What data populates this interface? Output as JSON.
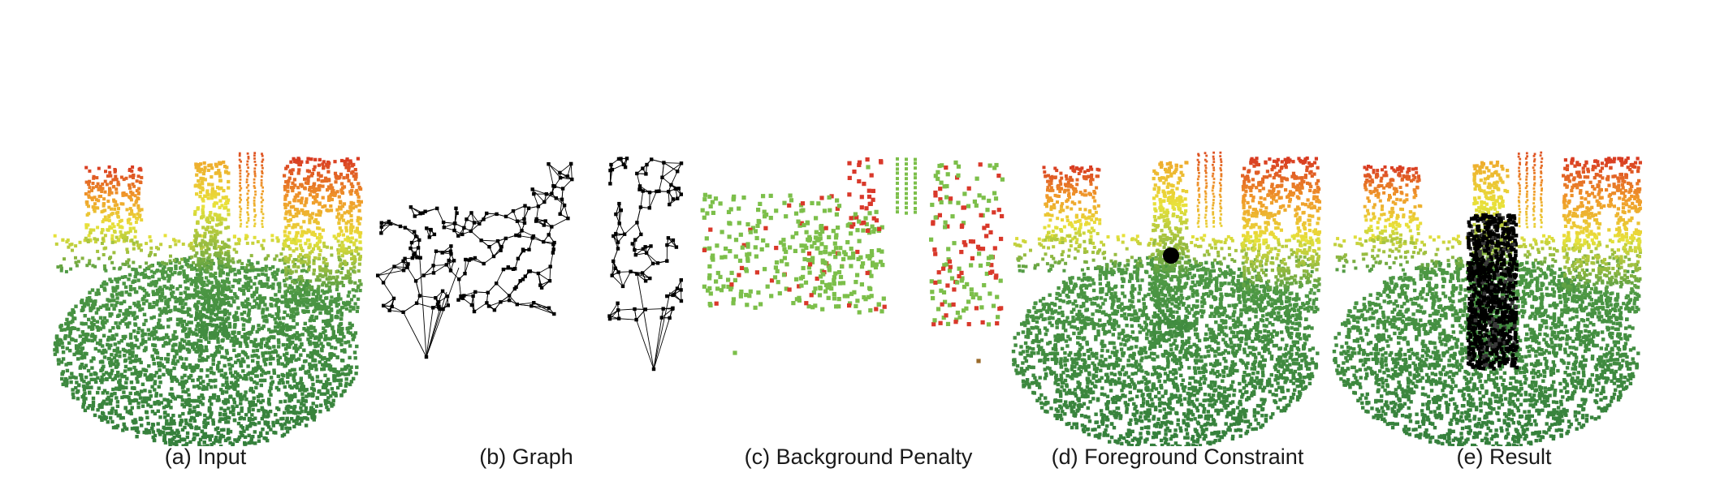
{
  "figure": {
    "panels": [
      {
        "key": "a",
        "caption": "(a) Input",
        "kind": "pointcloud"
      },
      {
        "key": "b",
        "caption": "(b) Graph",
        "kind": "graph"
      },
      {
        "key": "c",
        "caption": "(c) Background Penalty",
        "kind": "penalty"
      },
      {
        "key": "d",
        "caption": "(d) Foreground Constraint",
        "kind": "constraint"
      },
      {
        "key": "e",
        "caption": "(e) Result",
        "kind": "result"
      }
    ],
    "colors": {
      "ground_green": "#4f9a45",
      "ground_dark": "#2f7a3a",
      "yellow": "#e8e23a",
      "orange": "#f09a2a",
      "red": "#d83a22",
      "penalty_green": "#7cbf4a",
      "penalty_red": "#d9382a",
      "graph_black": "#000000",
      "foreground_black": "#000000"
    }
  }
}
